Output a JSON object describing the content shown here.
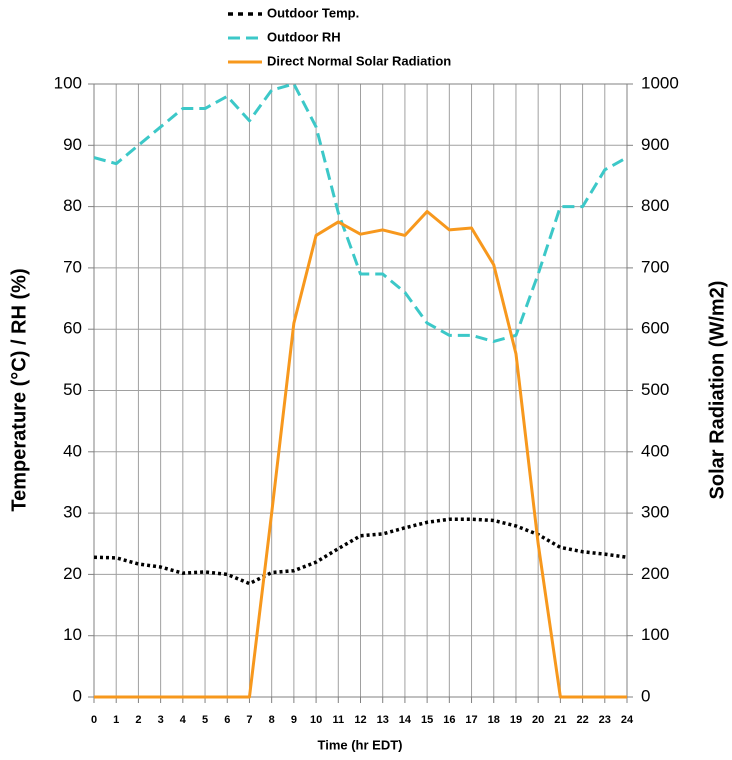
{
  "chart_data": {
    "type": "line",
    "x_label": "Time (hr EDT)",
    "y_label": "Temperature (°C) / RH (%)",
    "y2_label": "Solar Radiation (W/m2)",
    "x": [
      0,
      1,
      2,
      3,
      4,
      5,
      6,
      7,
      8,
      9,
      10,
      11,
      12,
      13,
      14,
      15,
      16,
      17,
      18,
      19,
      20,
      21,
      22,
      23,
      24
    ],
    "xlim": [
      0,
      24
    ],
    "xticks": [
      0,
      1,
      2,
      3,
      4,
      5,
      6,
      7,
      8,
      9,
      10,
      11,
      12,
      13,
      14,
      15,
      16,
      17,
      18,
      19,
      20,
      21,
      22,
      23,
      24
    ],
    "ylim": [
      0,
      100
    ],
    "yticks": [
      0,
      10,
      20,
      30,
      40,
      50,
      60,
      70,
      80,
      90,
      100
    ],
    "y2lim": [
      0,
      1000
    ],
    "y2ticks": [
      0,
      100,
      200,
      300,
      400,
      500,
      600,
      700,
      800,
      900,
      1000
    ],
    "grid": true,
    "legend": "top",
    "series": [
      {
        "name": "Outdoor Temp.",
        "color": "#000000",
        "style": "dotted",
        "values": [
          22.8,
          22.7,
          21.7,
          21.2,
          20.2,
          20.4,
          20.0,
          18.5,
          20.3,
          20.6,
          22.0,
          24.2,
          26.3,
          26.6,
          27.6,
          28.5,
          29.0,
          29.0,
          28.8,
          27.9,
          26.5,
          24.4,
          23.7,
          23.3,
          22.8
        ]
      },
      {
        "name": "Outdoor RH",
        "color": "#3cc8c8",
        "style": "dashed",
        "values": [
          88,
          87,
          90,
          93,
          96,
          96,
          98,
          94,
          99,
          100,
          93,
          79,
          69,
          69,
          66,
          61,
          59,
          59,
          58,
          59,
          69,
          80,
          80,
          86,
          88
        ]
      },
      {
        "name": "Direct Normal Solar Radiation",
        "color": "#f7981d",
        "style": "solid",
        "axis": "y2",
        "values": [
          0,
          0,
          0,
          0,
          0,
          0,
          0,
          0,
          300,
          610,
          753,
          775,
          755,
          762,
          753,
          792,
          762,
          765,
          705,
          560,
          250,
          0,
          0,
          0,
          0
        ]
      }
    ]
  }
}
